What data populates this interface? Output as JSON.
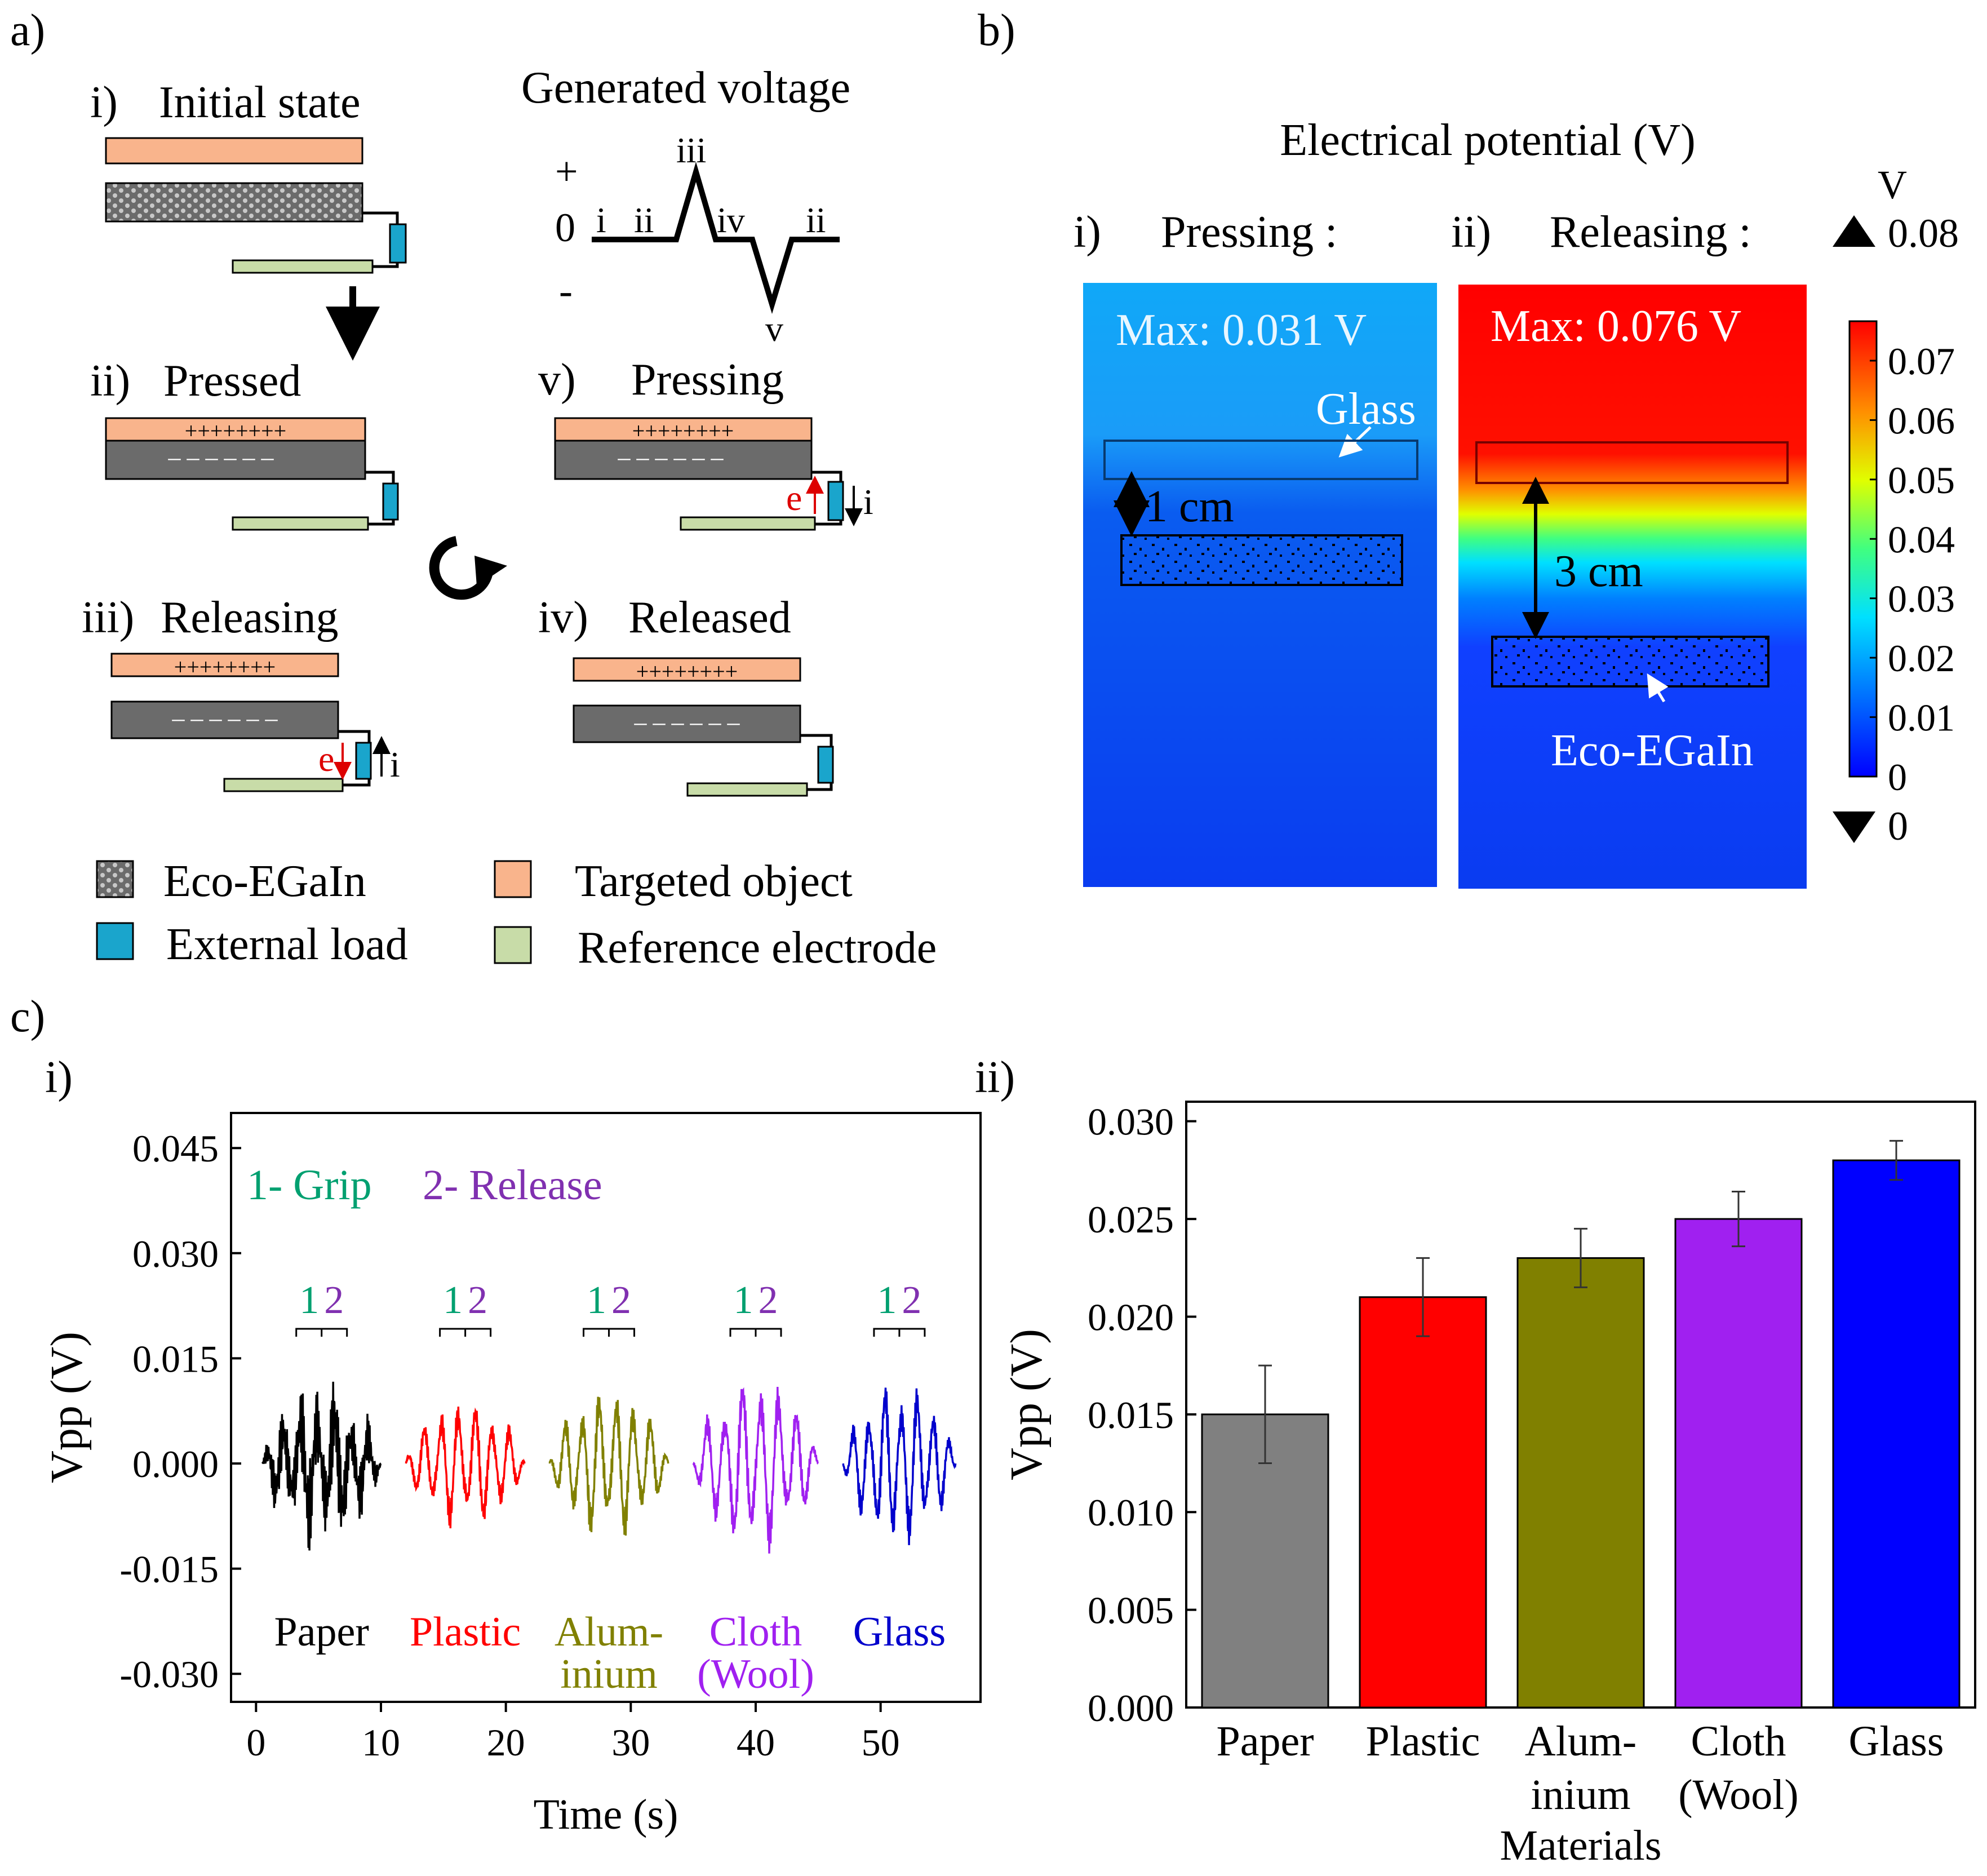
{
  "panel_labels": {
    "a": "a)",
    "b": "b)",
    "c": "c)",
    "ci": "i)",
    "cii": "ii)"
  },
  "panel_a": {
    "steps": {
      "i": {
        "num": "i)",
        "label": "Initial state"
      },
      "ii": {
        "num": "ii)",
        "label": "Pressed"
      },
      "iii": {
        "num": "iii)",
        "label": "Releasing"
      },
      "iv": {
        "num": "iv)",
        "label": "Released"
      },
      "v": {
        "num": "v)",
        "label": "Pressing"
      }
    },
    "plus_charges": "++++++++",
    "minus_charges": "– – – – – –",
    "electron": "e",
    "current": "i",
    "voltage": {
      "title": "Generated voltage",
      "plus": "+",
      "zero": "0",
      "minus": "-",
      "seq": [
        "i",
        "ii",
        "iii",
        "iv",
        "v",
        "ii"
      ]
    },
    "legend": {
      "eco": "Eco-EGaIn",
      "target": "Targeted object",
      "load": "External load",
      "ref": "Reference electrode"
    },
    "colors": {
      "target": "#f9b48c",
      "eco": "#6b6b6b",
      "load": "#1aa5cc",
      "ref": "#c8dca8"
    }
  },
  "panel_b": {
    "title": "Electrical potential (V)",
    "pressing": {
      "num": "i)",
      "label": "Pressing :",
      "max": "Max: 0.031 V",
      "glass": "Glass",
      "gap": "1 cm"
    },
    "releasing": {
      "num": "ii)",
      "label": "Releasing :",
      "max": "Max: 0.076 V",
      "gap": "3 cm",
      "eco": "Eco-EGaIn"
    },
    "colorbar": {
      "unit": "V",
      "max": "0.08",
      "min": "0",
      "ticks": [
        "0.07",
        "0.06",
        "0.05",
        "0.04",
        "0.03",
        "0.02",
        "0.01",
        "0"
      ]
    }
  },
  "chart_data": [
    {
      "type": "line",
      "xlabel": "Time (s)",
      "ylabel": "Vpp (V)",
      "xlim": [
        -2,
        58
      ],
      "ylim": [
        -0.034,
        0.05
      ],
      "xticks": [
        "0",
        "10",
        "20",
        "30",
        "40",
        "50"
      ],
      "yticks": [
        "0.045",
        "0.030",
        "0.015",
        "0.000",
        "-0.015",
        "-0.030"
      ],
      "legend": {
        "grip": "1- Grip",
        "release": "2- Release"
      },
      "marker_one": "1",
      "marker_two": "2",
      "series": [
        {
          "name": "Paper",
          "label_line1": "Paper",
          "label_line2": "",
          "color": "#000000",
          "t_start": 0.5,
          "t_end": 10,
          "amplitude": 0.01
        },
        {
          "name": "Plastic",
          "label_line1": "Plastic",
          "label_line2": "",
          "color": "#ff0000",
          "t_start": 12,
          "t_end": 21.5,
          "amplitude": 0.011
        },
        {
          "name": "Aluminium",
          "label_line1": "Alum-",
          "label_line2": "inium",
          "color": "#808000",
          "t_start": 23.5,
          "t_end": 33,
          "amplitude": 0.013
        },
        {
          "name": "Cloth (Wool)",
          "label_line1": "Cloth",
          "label_line2": "(Wool)",
          "color": "#a020f0",
          "t_start": 35,
          "t_end": 45,
          "amplitude": 0.015
        },
        {
          "name": "Glass",
          "label_line1": "Glass",
          "label_line2": "",
          "color": "#0000cc",
          "t_start": 47,
          "t_end": 56,
          "amplitude": 0.014
        }
      ]
    },
    {
      "type": "bar",
      "xlabel": "Materials",
      "ylabel": "Vpp (V)",
      "ylim": [
        0,
        0.031
      ],
      "yticks": [
        "0.030",
        "0.025",
        "0.020",
        "0.015",
        "0.010",
        "0.005",
        "0.000"
      ],
      "categories": [
        {
          "line1": "Paper",
          "line2": ""
        },
        {
          "line1": "Plastic",
          "line2": ""
        },
        {
          "line1": "Alum-",
          "line2": "inium"
        },
        {
          "line1": "Cloth",
          "line2": "(Wool)"
        },
        {
          "line1": "Glass",
          "line2": ""
        }
      ],
      "values": [
        0.015,
        0.021,
        0.023,
        0.025,
        0.028
      ],
      "errors": [
        0.0025,
        0.002,
        0.0015,
        0.0014,
        0.001
      ],
      "colors": [
        "#808080",
        "#ff0000",
        "#808000",
        "#a020f0",
        "#0000ff"
      ]
    }
  ]
}
